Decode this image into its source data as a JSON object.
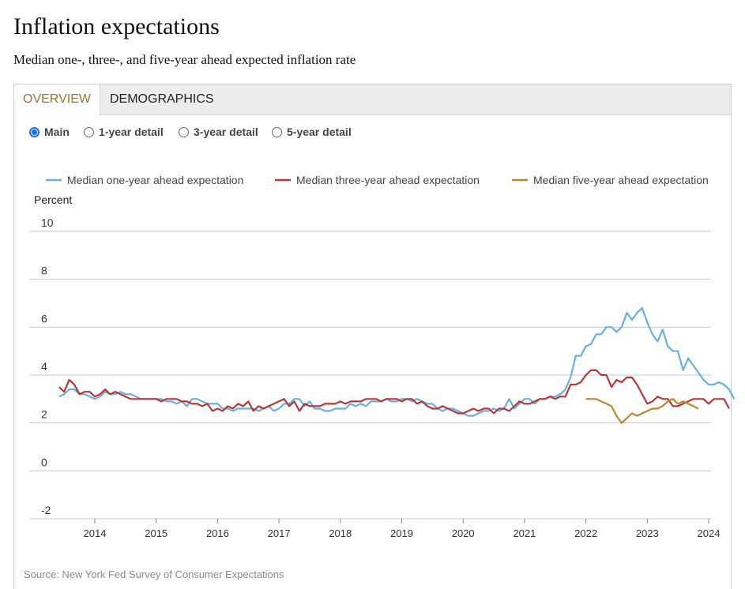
{
  "header": {
    "title": "Inflation expectations",
    "subtitle": "Median one-, three-, and five-year ahead expected inflation rate"
  },
  "tabs": [
    {
      "label": "OVERVIEW",
      "active": true
    },
    {
      "label": "DEMOGRAPHICS",
      "active": false
    }
  ],
  "views": [
    {
      "label": "Main",
      "selected": true
    },
    {
      "label": "1-year detail",
      "selected": false
    },
    {
      "label": "3-year detail",
      "selected": false
    },
    {
      "label": "5-year detail",
      "selected": false
    }
  ],
  "source": "Source: New York Fed Survey of Consumer Expectations",
  "colors": {
    "one_year": "#6ab0de",
    "three_year": "#b5393b",
    "five_year": "#b88a2e",
    "accent": "#9a7430"
  },
  "chart_data": {
    "type": "line",
    "ylabel": "Percent",
    "ylim": [
      -2,
      10
    ],
    "yticks": [
      -2,
      0,
      2,
      4,
      6,
      8,
      10
    ],
    "xlim": [
      2013.42,
      2024.0
    ],
    "xticks": [
      "2014",
      "2015",
      "2016",
      "2017",
      "2018",
      "2019",
      "2020",
      "2021",
      "2022",
      "2023",
      "2024"
    ],
    "legend_position": "top",
    "grid": true,
    "series": [
      {
        "name": "Median one-year ahead expectation",
        "color": "#6ab0de",
        "start": "2013-06",
        "values": [
          3.1,
          3.2,
          3.4,
          3.4,
          3.2,
          3.2,
          3.1,
          3.0,
          3.1,
          3.3,
          3.2,
          3.2,
          3.3,
          3.2,
          3.2,
          3.1,
          3.0,
          3.0,
          3.0,
          3.0,
          3.0,
          2.9,
          2.9,
          2.8,
          2.9,
          2.7,
          3.0,
          3.0,
          2.9,
          2.8,
          2.8,
          2.8,
          2.6,
          2.6,
          2.5,
          2.6,
          2.6,
          2.6,
          2.6,
          2.5,
          2.6,
          2.7,
          2.5,
          2.6,
          2.8,
          2.8,
          3.0,
          3.0,
          2.7,
          2.9,
          2.6,
          2.6,
          2.5,
          2.5,
          2.6,
          2.6,
          2.6,
          2.8,
          2.7,
          2.8,
          2.7,
          2.9,
          2.9,
          2.9,
          3.0,
          2.9,
          2.9,
          3.0,
          3.0,
          2.9,
          3.0,
          2.9,
          2.8,
          2.8,
          2.6,
          2.5,
          2.6,
          2.6,
          2.5,
          2.4,
          2.3,
          2.3,
          2.4,
          2.5,
          2.5,
          2.6,
          2.5,
          2.6,
          3.0,
          2.6,
          2.8,
          3.0,
          3.0,
          2.8,
          3.0,
          3.0,
          3.1,
          3.1,
          3.2,
          3.4,
          3.9,
          4.8,
          4.8,
          5.2,
          5.3,
          5.7,
          5.7,
          6.0,
          6.0,
          5.8,
          6.0,
          6.6,
          6.3,
          6.6,
          6.8,
          6.2,
          5.7,
          5.4,
          5.9,
          5.2,
          5.0,
          5.0,
          4.2,
          4.7,
          4.4,
          4.1,
          3.8,
          3.6,
          3.6,
          3.7,
          3.6,
          3.4,
          3.0
        ]
      },
      {
        "name": "Median three-year ahead expectation",
        "color": "#b5393b",
        "start": "2013-06",
        "values": [
          3.5,
          3.3,
          3.8,
          3.6,
          3.2,
          3.3,
          3.3,
          3.1,
          3.2,
          3.4,
          3.2,
          3.3,
          3.2,
          3.1,
          3.0,
          3.0,
          3.0,
          3.0,
          3.0,
          3.0,
          2.9,
          3.0,
          3.0,
          3.0,
          2.9,
          2.9,
          2.8,
          2.8,
          2.7,
          2.8,
          2.5,
          2.6,
          2.5,
          2.7,
          2.6,
          2.8,
          2.7,
          2.9,
          2.5,
          2.7,
          2.6,
          2.7,
          2.8,
          2.9,
          3.0,
          2.7,
          2.9,
          2.5,
          2.8,
          2.7,
          2.7,
          2.7,
          2.8,
          2.8,
          2.8,
          2.9,
          2.8,
          2.9,
          2.9,
          2.9,
          3.0,
          3.0,
          3.0,
          2.9,
          3.0,
          3.0,
          3.0,
          2.9,
          3.0,
          3.0,
          2.8,
          2.9,
          2.7,
          2.6,
          2.6,
          2.7,
          2.6,
          2.5,
          2.4,
          2.4,
          2.5,
          2.6,
          2.5,
          2.6,
          2.6,
          2.4,
          2.6,
          2.6,
          2.5,
          2.7,
          2.9,
          2.8,
          2.8,
          2.9,
          3.0,
          3.0,
          3.1,
          3.0,
          3.1,
          3.1,
          3.6,
          3.6,
          3.7,
          4.0,
          4.2,
          4.2,
          4.0,
          4.0,
          3.5,
          3.8,
          3.7,
          3.9,
          3.9,
          3.6,
          3.2,
          2.8,
          2.9,
          3.1,
          3.0,
          3.0,
          2.7,
          2.7,
          2.8,
          2.9,
          3.0,
          3.0,
          3.0,
          2.8,
          3.0,
          3.0,
          3.0,
          2.6
        ]
      },
      {
        "name": "Median five-year ahead expectation",
        "color": "#b88a2e",
        "start": "2022-01",
        "values": [
          3.0,
          3.0,
          3.0,
          2.9,
          2.8,
          2.7,
          2.3,
          2.0,
          2.2,
          2.4,
          2.3,
          2.4,
          2.5,
          2.6,
          2.6,
          2.7,
          2.9,
          3.0,
          2.8,
          2.9,
          2.8,
          2.7,
          2.6
        ]
      }
    ]
  }
}
